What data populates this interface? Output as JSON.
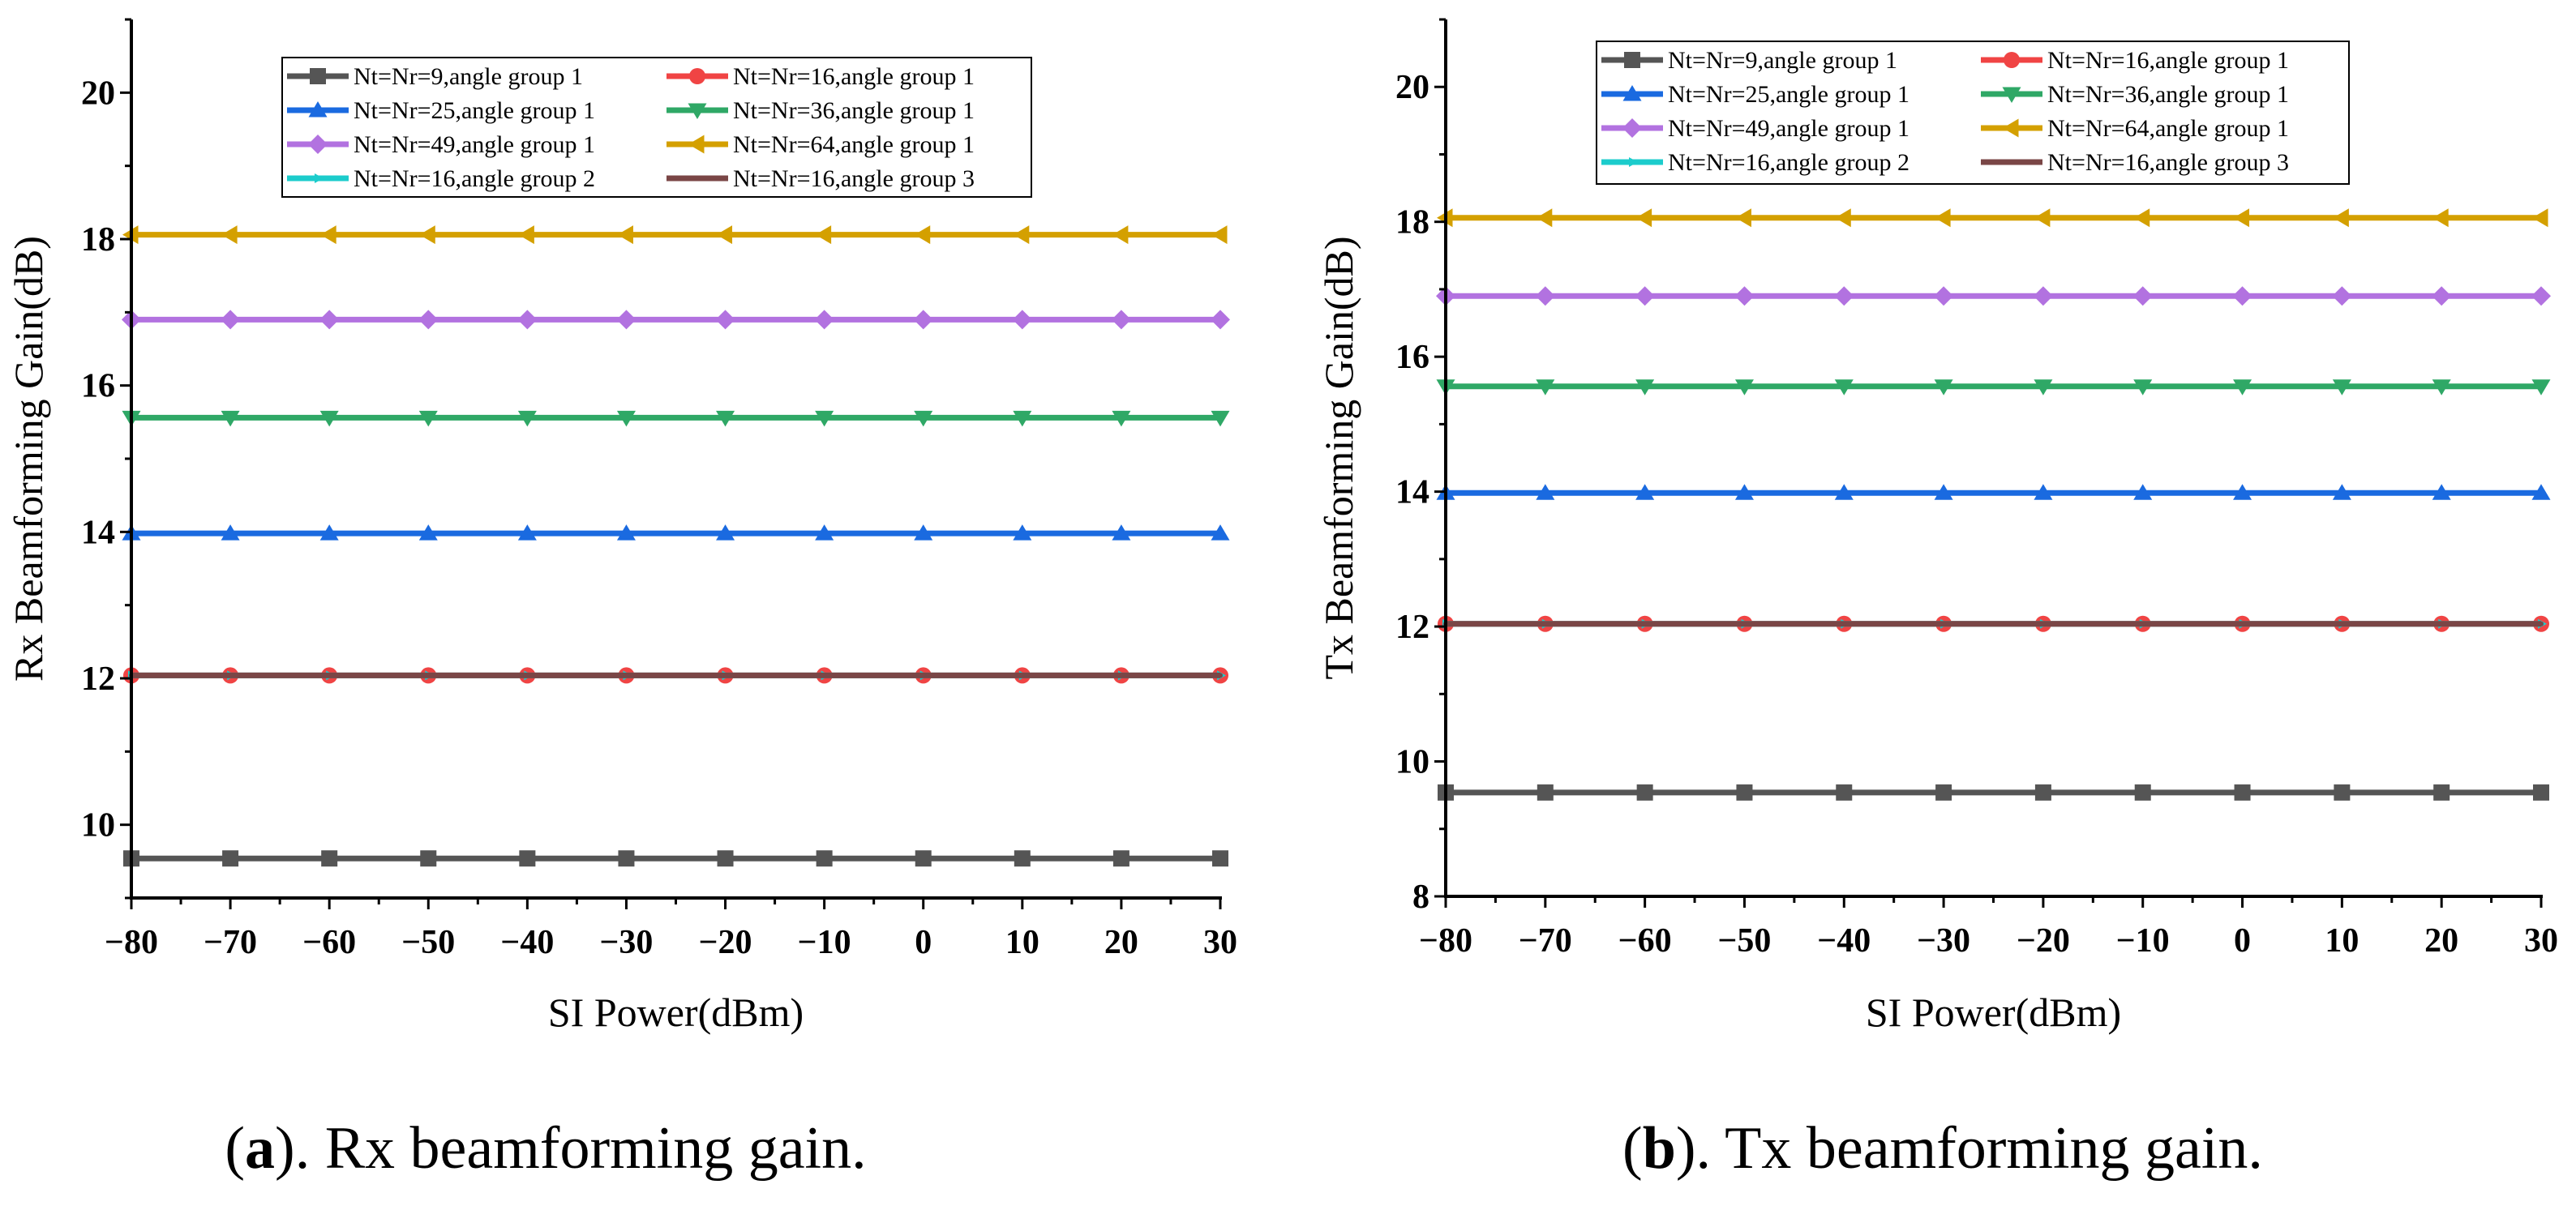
{
  "chart_data": [
    {
      "type": "line",
      "id": "a",
      "xlabel": "SI Power(dBm)",
      "ylabel": "Rx Beamforming Gain(dB)",
      "xlim": [
        -80,
        30
      ],
      "ylim": [
        9,
        21
      ],
      "xticks": [
        -80,
        -70,
        -60,
        -50,
        -40,
        -30,
        -20,
        -10,
        0,
        10,
        20,
        30
      ],
      "xtick_labels": [
        "−80",
        "−70",
        "−60",
        "−50",
        "−40",
        "−30",
        "−20",
        "−10",
        "0",
        "10",
        "20",
        "30"
      ],
      "yticks": [
        10,
        12,
        14,
        16,
        18,
        20
      ],
      "ytick_labels": [
        "10",
        "12",
        "14",
        "16",
        "18",
        "20"
      ],
      "legend_position": "top-center",
      "grid": false,
      "x": [
        -80,
        -70,
        -60,
        -50,
        -40,
        -30,
        -20,
        -10,
        0,
        10,
        20,
        30
      ],
      "series": [
        {
          "name": "Nt=Nr=9,angle group 1",
          "color": "#555555",
          "marker": "square",
          "value": 9.54
        },
        {
          "name": "Nt=Nr=16,angle group 1",
          "color": "#f04444",
          "marker": "circle",
          "value": 12.04
        },
        {
          "name": "Nt=Nr=25,angle group 1",
          "color": "#1a6ae0",
          "marker": "triangle-up",
          "value": 13.98
        },
        {
          "name": "Nt=Nr=36,angle group 1",
          "color": "#2fa866",
          "marker": "triangle-down",
          "value": 15.56
        },
        {
          "name": "Nt=Nr=49,angle group 1",
          "color": "#b272e0",
          "marker": "diamond",
          "value": 16.9
        },
        {
          "name": "Nt=Nr=64,angle group 1",
          "color": "#d4a000",
          "marker": "triangle-left",
          "value": 18.06
        },
        {
          "name": "Nt=Nr=16,angle group 2",
          "color": "#1ccccc",
          "marker": "arrow-right",
          "value": 12.04
        },
        {
          "name": "Nt=Nr=16,angle group 3",
          "color": "#7a4646",
          "marker": "dot",
          "value": 12.04
        }
      ]
    },
    {
      "type": "line",
      "id": "b",
      "xlabel": "SI Power(dBm)",
      "ylabel": "Tx Beamforming Gain(dB)",
      "xlim": [
        -80,
        30
      ],
      "ylim": [
        8,
        21
      ],
      "xticks": [
        -80,
        -70,
        -60,
        -50,
        -40,
        -30,
        -20,
        -10,
        0,
        10,
        20,
        30
      ],
      "xtick_labels": [
        "−80",
        "−70",
        "−60",
        "−50",
        "−40",
        "−30",
        "−20",
        "−10",
        "0",
        "10",
        "20",
        "30"
      ],
      "yticks": [
        8,
        10,
        12,
        14,
        16,
        18,
        20
      ],
      "ytick_labels": [
        "8",
        "10",
        "12",
        "14",
        "16",
        "18",
        "20"
      ],
      "legend_position": "top-center",
      "grid": false,
      "x": [
        -80,
        -70,
        -60,
        -50,
        -40,
        -30,
        -20,
        -10,
        0,
        10,
        20,
        30
      ],
      "series": [
        {
          "name": "Nt=Nr=9,angle group 1",
          "color": "#555555",
          "marker": "square",
          "value": 9.54
        },
        {
          "name": "Nt=Nr=16,angle group 1",
          "color": "#f04444",
          "marker": "circle",
          "value": 12.04
        },
        {
          "name": "Nt=Nr=25,angle group 1",
          "color": "#1a6ae0",
          "marker": "triangle-up",
          "value": 13.98
        },
        {
          "name": "Nt=Nr=36,angle group 1",
          "color": "#2fa866",
          "marker": "triangle-down",
          "value": 15.56
        },
        {
          "name": "Nt=Nr=49,angle group 1",
          "color": "#b272e0",
          "marker": "diamond",
          "value": 16.9
        },
        {
          "name": "Nt=Nr=64,angle group 1",
          "color": "#d4a000",
          "marker": "triangle-left",
          "value": 18.06
        },
        {
          "name": "Nt=Nr=16,angle group 2",
          "color": "#1ccccc",
          "marker": "arrow-right",
          "value": 12.04
        },
        {
          "name": "Nt=Nr=16,angle group 3",
          "color": "#7a4646",
          "marker": "dot",
          "value": 12.04
        }
      ]
    }
  ],
  "captions": [
    {
      "label": "a",
      "text": "). Rx beamforming gain.",
      "open": "("
    },
    {
      "label": "b",
      "text": "). Tx beamforming gain.",
      "open": "("
    }
  ]
}
